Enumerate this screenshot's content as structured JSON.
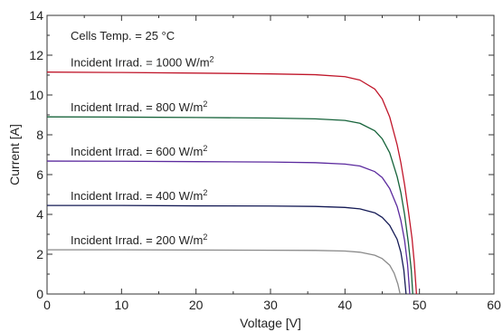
{
  "chart_data": {
    "type": "line",
    "xlabel": "Voltage [V]",
    "ylabel": "Current [A]",
    "xlim": [
      0,
      60
    ],
    "ylim": [
      0,
      14
    ],
    "x_ticks": [
      0,
      10,
      20,
      30,
      40,
      50,
      60
    ],
    "y_ticks": [
      0,
      2,
      4,
      6,
      8,
      10,
      12,
      14
    ],
    "grid": false,
    "note": "Cells Temp. = 25 °C",
    "series": [
      {
        "name": "Incident Irrad. = 1000 W/m",
        "unit_sup": "2",
        "color": "#c0162a",
        "x": [
          0,
          10,
          20,
          30,
          36,
          40,
          42,
          44,
          45,
          46,
          47,
          47.5,
          48,
          48.5,
          49,
          49.3,
          49.6
        ],
        "y": [
          11.15,
          11.13,
          11.1,
          11.06,
          11.02,
          10.92,
          10.75,
          10.3,
          9.8,
          8.9,
          7.5,
          6.6,
          5.5,
          4.2,
          2.8,
          1.6,
          0
        ]
      },
      {
        "name": "Incident Irrad. = 800 W/m",
        "unit_sup": "2",
        "color": "#16633a",
        "x": [
          0,
          10,
          20,
          30,
          36,
          40,
          42,
          44,
          45,
          46,
          47,
          47.5,
          48,
          48.5,
          48.9,
          49.1
        ],
        "y": [
          8.9,
          8.89,
          8.87,
          8.84,
          8.8,
          8.72,
          8.58,
          8.2,
          7.8,
          7.1,
          5.9,
          5.1,
          4.0,
          2.6,
          1.2,
          0
        ]
      },
      {
        "name": "Incident Irrad. = 600 W/m",
        "unit_sup": "2",
        "color": "#5b2a9e",
        "x": [
          0,
          10,
          20,
          30,
          36,
          40,
          42,
          44,
          45,
          46,
          47,
          47.5,
          48,
          48.4,
          48.7
        ],
        "y": [
          6.68,
          6.67,
          6.65,
          6.63,
          6.6,
          6.53,
          6.43,
          6.15,
          5.85,
          5.3,
          4.4,
          3.7,
          2.7,
          1.5,
          0
        ]
      },
      {
        "name": "Incident Irrad. = 400 W/m",
        "unit_sup": "2",
        "color": "#141a55",
        "x": [
          0,
          10,
          20,
          30,
          36,
          40,
          42,
          44,
          45,
          46,
          47,
          47.5,
          47.9,
          48.2
        ],
        "y": [
          4.45,
          4.45,
          4.43,
          4.42,
          4.4,
          4.35,
          4.28,
          4.08,
          3.85,
          3.45,
          2.75,
          2.1,
          1.2,
          0
        ]
      },
      {
        "name": "Incident Irrad. = 200 W/m",
        "unit_sup": "2",
        "color": "#8a8a8a",
        "x": [
          0,
          10,
          20,
          30,
          36,
          40,
          42,
          44,
          45,
          46,
          46.6,
          47.1,
          47.4
        ],
        "y": [
          2.22,
          2.22,
          2.21,
          2.2,
          2.19,
          2.16,
          2.1,
          1.95,
          1.78,
          1.45,
          1.05,
          0.5,
          0
        ]
      }
    ]
  }
}
